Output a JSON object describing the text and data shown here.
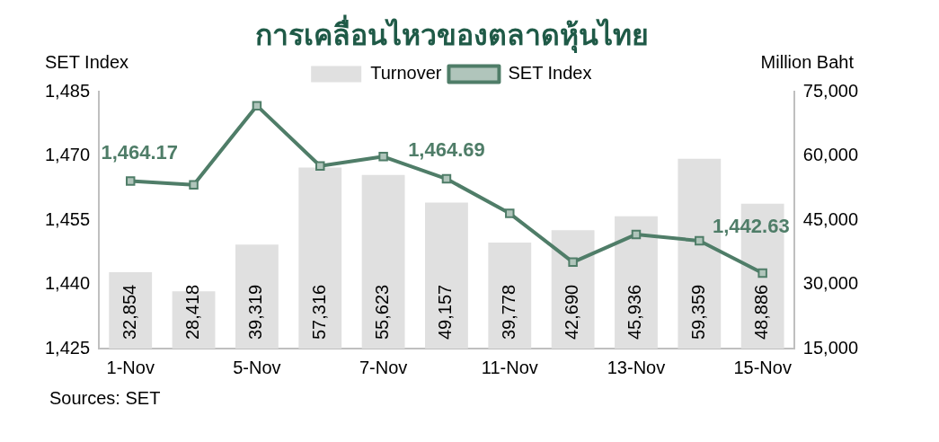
{
  "chart_data": {
    "type": "bar",
    "title": "การเคลื่อนไหวของตลาดหุ้นไทย",
    "ylabel": "SET Index",
    "y2label": "Million Baht",
    "categories": [
      "1-Nov",
      null,
      "5-Nov",
      null,
      "7-Nov",
      null,
      "11-Nov",
      null,
      "13-Nov",
      null,
      "15-Nov"
    ],
    "series": [
      {
        "name": "Turnover",
        "axis": "y2",
        "color": "#e0e0e0",
        "values": [
          32854,
          28418,
          39319,
          57316,
          55623,
          49157,
          39778,
          42690,
          45936,
          59359,
          48886
        ],
        "value_labels": [
          "32,854",
          "28,418",
          "39,319",
          "57,316",
          "55,623",
          "49,157",
          "39,778",
          "42,690",
          "45,936",
          "59,359",
          "48,886"
        ]
      },
      {
        "name": "SET Index",
        "type": "line",
        "axis": "y",
        "color": "#4f7d68",
        "marker": "square",
        "values": [
          1464.17,
          1463.3,
          1481.8,
          1467.7,
          1469.9,
          1464.69,
          1456.6,
          1445.2,
          1451.7,
          1450.2,
          1442.63
        ],
        "value_labels": [
          "1,464.17",
          null,
          null,
          null,
          null,
          "1,464.69",
          null,
          null,
          null,
          null,
          "1,442.63"
        ]
      }
    ],
    "ylim": [
      1425,
      1485
    ],
    "yticks": [
      {
        "value": 1425,
        "label": "1,425"
      },
      {
        "value": 1440,
        "label": "1,440"
      },
      {
        "value": 1455,
        "label": "1,455"
      },
      {
        "value": 1470,
        "label": "1,470"
      },
      {
        "value": 1485,
        "label": "1,485"
      }
    ],
    "y2lim": [
      15000,
      75000
    ],
    "y2ticks": [
      {
        "value": 15000,
        "label": "15,000"
      },
      {
        "value": 30000,
        "label": "30,000"
      },
      {
        "value": 45000,
        "label": "45,000"
      },
      {
        "value": 60000,
        "label": "60,000"
      },
      {
        "value": 75000,
        "label": "75,000"
      }
    ],
    "legend": "top",
    "grid": false,
    "annotations": [
      "Sources: SET"
    ]
  }
}
